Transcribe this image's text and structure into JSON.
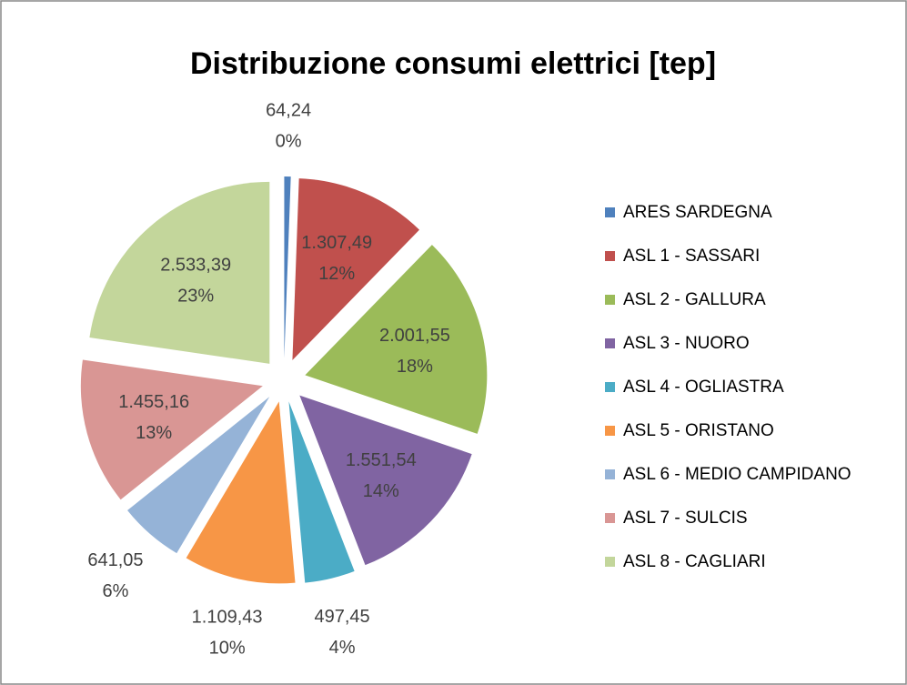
{
  "chart_data": {
    "type": "pie",
    "title": "Distribuzione consumi elettrici [tep]",
    "categories": [
      "ARES SARDEGNA",
      "ASL 1 - SASSARI",
      "ASL 2 - GALLURA",
      "ASL 3 - NUORO",
      "ASL 4 - OGLIASTRA",
      "ASL 5 - ORISTANO",
      "ASL 6 - MEDIO CAMPIDANO",
      "ASL 7 - SULCIS",
      "ASL 8 - CAGLIARI"
    ],
    "values": [
      64.24,
      1307.49,
      2001.55,
      1551.54,
      497.45,
      1109.43,
      641.05,
      1455.16,
      2533.39
    ],
    "value_labels": [
      "64,24",
      "1.307,49",
      "2.001,55",
      "1.551,54",
      "497,45",
      "1.109,43",
      "641,05",
      "1.455,16",
      "2.533,39"
    ],
    "percents": [
      0,
      12,
      18,
      14,
      4,
      10,
      6,
      13,
      23
    ],
    "percent_labels": [
      "0%",
      "12%",
      "18%",
      "14%",
      "4%",
      "10%",
      "6%",
      "13%",
      "23%"
    ],
    "colors": [
      "#4f81bd",
      "#c0504d",
      "#9bbb59",
      "#8064a2",
      "#4bacc6",
      "#f79646",
      "#95b3d7",
      "#d99694",
      "#c3d69b"
    ],
    "exploded": true,
    "legend": "right"
  }
}
